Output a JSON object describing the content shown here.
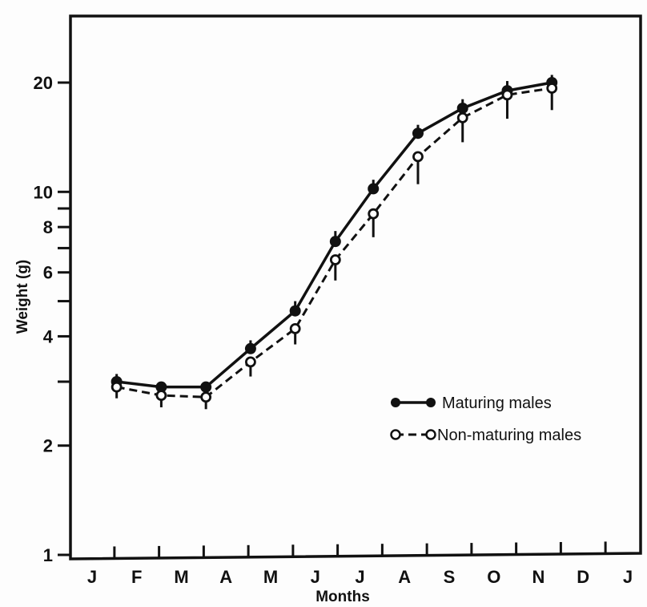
{
  "chart_data": {
    "type": "line",
    "xlabel": "Months",
    "ylabel": "Weight (g)",
    "yscale": "log",
    "ylim": [
      1,
      25
    ],
    "yticks": [
      1,
      2,
      3,
      4,
      5,
      6,
      7,
      8,
      9,
      10,
      20
    ],
    "ytick_labels": [
      {
        "value": 1,
        "label": "1"
      },
      {
        "value": 2,
        "label": "2"
      },
      {
        "value": 4,
        "label": "4"
      },
      {
        "value": 6,
        "label": "6"
      },
      {
        "value": 8,
        "label": "8"
      },
      {
        "value": 10,
        "label": "10"
      },
      {
        "value": 20,
        "label": "20"
      }
    ],
    "x_categories": [
      "J",
      "F",
      "M",
      "A",
      "M",
      "J",
      "J",
      "A",
      "S",
      "O",
      "N",
      "D",
      "J"
    ],
    "grid": false,
    "legend_position": "right",
    "series": [
      {
        "name": "Maturing males",
        "marker": "filled-circle",
        "line": "solid",
        "x": [
          0.55,
          1.55,
          2.55,
          3.55,
          4.55,
          5.45,
          6.3,
          7.3,
          8.3,
          9.3,
          10.3
        ],
        "y": [
          3.0,
          2.9,
          2.9,
          3.7,
          4.7,
          7.3,
          10.2,
          14.5,
          17.0,
          19.0,
          20.0
        ],
        "err_up": [
          0.15,
          0.1,
          0.1,
          0.2,
          0.3,
          0.5,
          0.6,
          0.8,
          1.0,
          1.2,
          1.0
        ],
        "err_down": [
          0.1,
          0.1,
          0.1,
          0.1,
          0.1,
          0.2,
          0.2,
          0.3,
          0.3,
          0.3,
          0.3
        ]
      },
      {
        "name": "Non-maturing males",
        "marker": "open-circle",
        "line": "dashed",
        "x": [
          0.55,
          1.55,
          2.55,
          3.55,
          4.55,
          5.45,
          6.3,
          7.3,
          8.3,
          9.3,
          10.3
        ],
        "y": [
          2.9,
          2.75,
          2.72,
          3.4,
          4.2,
          6.5,
          8.7,
          12.5,
          16.0,
          18.5,
          19.3
        ],
        "err_up": [
          0.05,
          0.05,
          0.05,
          0.1,
          0.1,
          0.2,
          0.3,
          0.4,
          0.5,
          0.6,
          0.5
        ],
        "err_down": [
          0.2,
          0.2,
          0.2,
          0.3,
          0.4,
          0.8,
          1.2,
          2.0,
          2.3,
          2.6,
          2.5
        ]
      }
    ]
  }
}
